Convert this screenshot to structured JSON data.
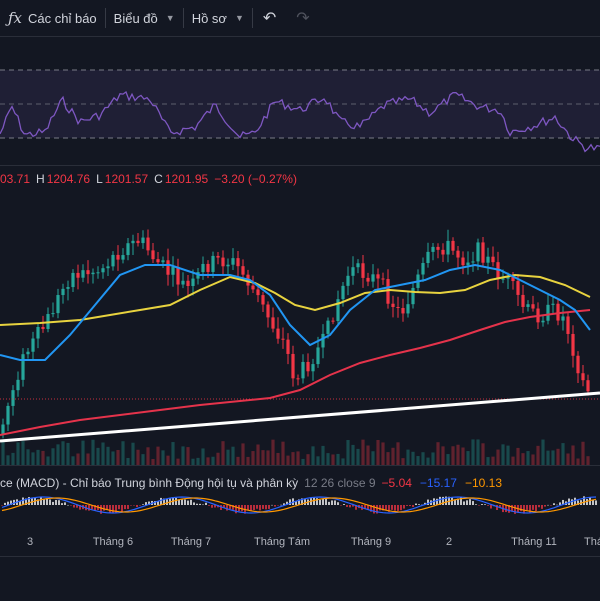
{
  "toolbar": {
    "indicators_label": "Các chỉ báo",
    "chart_type_label": "Biểu đồ",
    "profile_label": "Hồ sơ",
    "fx_icon": "ƒx"
  },
  "ohlc": {
    "o_value": "03.71",
    "h_label": "H",
    "h_value": "1204.76",
    "l_label": "L",
    "l_value": "1201.57",
    "c_label": "C",
    "c_value": "1201.95",
    "change": "−3.20 (−0.27%)"
  },
  "macd_legend": {
    "title": "ce (MACD) - Chỉ báo Trung bình Động hội tụ và phân kỳ",
    "params": "12 26 close 9",
    "value1": "−5.04",
    "value2": "−15.17",
    "value3": "−10.13"
  },
  "x_axis_labels": [
    "3",
    "Tháng 6",
    "Tháng 7",
    "Tháng Tám",
    "Tháng 9",
    "2",
    "Tháng 11",
    "Thán"
  ],
  "colors": {
    "background": "#131722",
    "up": "#26a69a",
    "down": "#f23645",
    "rsi_line": "#7e57c2",
    "ma_fast": "#2196f3",
    "ma_mid": "#e8d33f",
    "ma_slow": "#e5334b",
    "trendline": "#ffffff"
  },
  "icons": {
    "fx": "function-icon",
    "chevron": "chevron-down-icon",
    "undo": "undo-icon",
    "redo": "redo-icon"
  }
}
